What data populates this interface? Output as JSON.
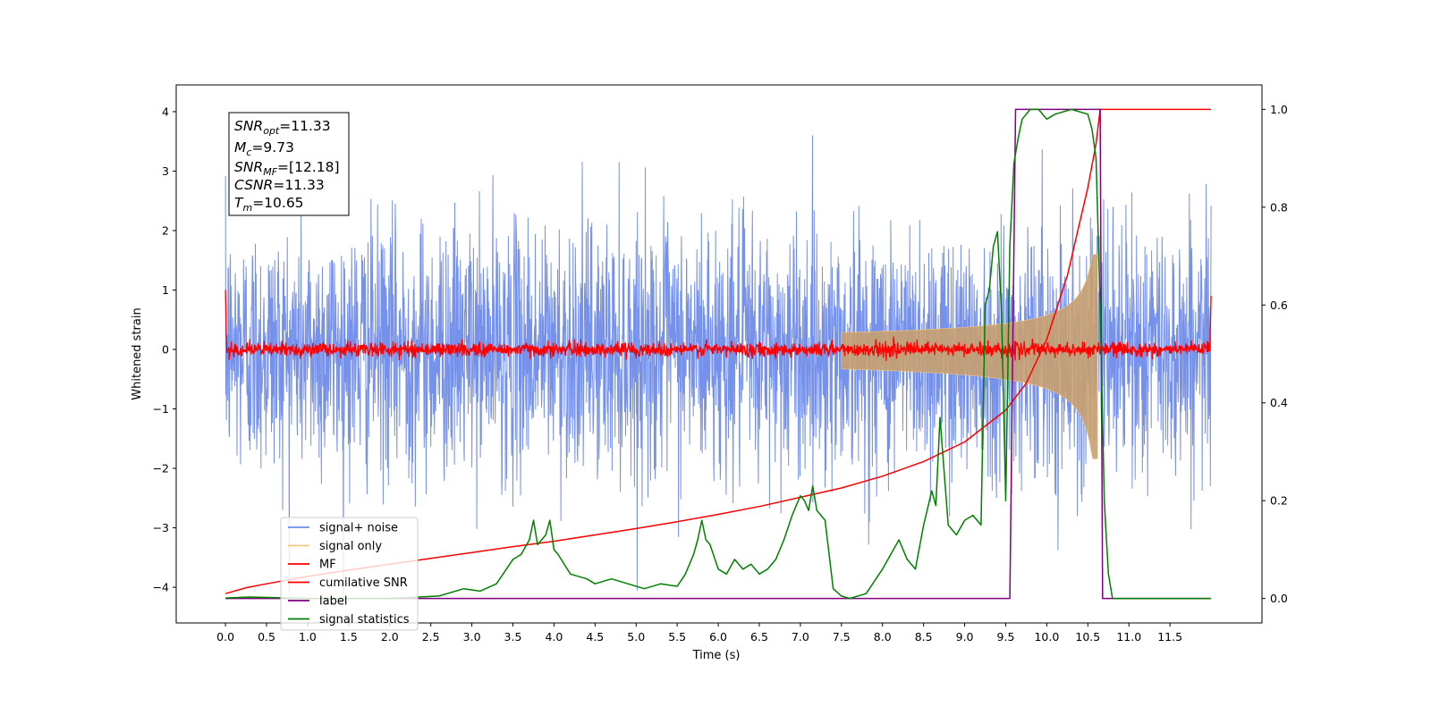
{
  "chart_data": {
    "type": "line",
    "xlabel": "Time (s)",
    "ylabel": "Whitened strain",
    "xlim": [
      -0.6,
      12.62
    ],
    "ylim": [
      -4.6,
      4.45
    ],
    "ylim_right": [
      -0.05,
      1.05
    ],
    "x_ticks": [
      "0.0",
      "0.5",
      "1.0",
      "1.5",
      "2.0",
      "2.5",
      "3.0",
      "3.5",
      "4.0",
      "4.5",
      "5.0",
      "5.5",
      "6.0",
      "6.5",
      "7.0",
      "7.5",
      "8.0",
      "8.5",
      "9.0",
      "9.5",
      "10.0",
      "10.5",
      "11.0",
      "11.5"
    ],
    "y_ticks_left": [
      "4",
      "3",
      "2",
      "1",
      "0",
      "−1",
      "−2",
      "−3",
      "−4"
    ],
    "y_ticks_right": [
      "1.0",
      "0.8",
      "0.6",
      "0.4",
      "0.2",
      "0.0"
    ],
    "grid": false,
    "legend_position": "lower-left",
    "colors": {
      "signal_noise": "#6f8be8",
      "signal_only": "#f5c77e",
      "mf": "#ff0000",
      "cumulative": "#ff0000",
      "label": "#800080",
      "stats": "#008000"
    },
    "legend": [
      {
        "key": "signal_noise",
        "label": "signal+ noise",
        "color": "#6f8be8"
      },
      {
        "key": "signal_only",
        "label": "signal only",
        "color": "#f5c77e"
      },
      {
        "key": "mf",
        "label": "MF",
        "color": "#ff0000"
      },
      {
        "key": "cumulative",
        "label": "cumilative SNR",
        "color": "#ff0000"
      },
      {
        "key": "label",
        "label": "label",
        "color": "#800080"
      },
      {
        "key": "stats",
        "label": "signal statistics",
        "color": "#008000"
      }
    ],
    "annotation": {
      "lines": [
        {
          "base": "SNR",
          "sub": "opt",
          "value": "=11.33"
        },
        {
          "base": "M",
          "sub": "c",
          "value": "=9.73"
        },
        {
          "base": "SNR",
          "sub": "MF",
          "value": "=[12.18]"
        },
        {
          "base": "CSNR",
          "sub": "",
          "value": "=11.33"
        },
        {
          "base": "T",
          "sub": "m",
          "value": "=10.65"
        }
      ]
    },
    "series": [
      {
        "key": "cumulative",
        "axis": "right",
        "x": [
          0.0,
          0.25,
          0.5,
          1.0,
          1.5,
          2.0,
          2.5,
          3.0,
          3.5,
          4.0,
          4.5,
          5.0,
          5.5,
          6.0,
          6.5,
          7.0,
          7.5,
          8.0,
          8.5,
          9.0,
          9.5,
          9.75,
          10.0,
          10.25,
          10.5,
          10.6,
          10.65,
          12.0
        ],
        "y": [
          0.01,
          0.022,
          0.03,
          0.045,
          0.058,
          0.07,
          0.082,
          0.094,
          0.106,
          0.117,
          0.13,
          0.143,
          0.157,
          0.172,
          0.188,
          0.207,
          0.226,
          0.25,
          0.28,
          0.32,
          0.385,
          0.44,
          0.53,
          0.66,
          0.84,
          0.93,
          1.0,
          1.0
        ]
      },
      {
        "key": "label",
        "axis": "right",
        "x": [
          0.0,
          9.55,
          9.62,
          10.65,
          10.68,
          12.0
        ],
        "y": [
          0.0,
          0.0,
          1.0,
          1.0,
          0.0,
          0.0
        ]
      },
      {
        "key": "stats",
        "axis": "right",
        "x": [
          0.0,
          0.3,
          1.0,
          2.0,
          2.6,
          2.9,
          3.1,
          3.3,
          3.5,
          3.6,
          3.7,
          3.75,
          3.8,
          3.9,
          3.95,
          4.0,
          4.05,
          4.2,
          4.4,
          4.5,
          4.7,
          4.9,
          5.1,
          5.3,
          5.5,
          5.6,
          5.7,
          5.75,
          5.8,
          5.85,
          5.9,
          6.0,
          6.1,
          6.2,
          6.3,
          6.4,
          6.5,
          6.6,
          6.7,
          6.8,
          6.9,
          7.0,
          7.05,
          7.1,
          7.15,
          7.2,
          7.3,
          7.4,
          7.5,
          7.6,
          7.8,
          8.0,
          8.2,
          8.3,
          8.4,
          8.5,
          8.6,
          8.65,
          8.7,
          8.8,
          8.9,
          9.0,
          9.1,
          9.2,
          9.25,
          9.3,
          9.35,
          9.4,
          9.45,
          9.5,
          9.55,
          9.6,
          9.65,
          9.7,
          9.75,
          9.8,
          9.85,
          9.9,
          10.0,
          10.1,
          10.3,
          10.5,
          10.55,
          10.6,
          10.65,
          10.7,
          10.75,
          10.8,
          10.85,
          10.9,
          11.0,
          12.0
        ],
        "y": [
          0.001,
          0.003,
          0.0,
          0.0,
          0.005,
          0.02,
          0.015,
          0.03,
          0.08,
          0.09,
          0.12,
          0.16,
          0.11,
          0.13,
          0.16,
          0.1,
          0.09,
          0.05,
          0.04,
          0.03,
          0.04,
          0.03,
          0.02,
          0.03,
          0.025,
          0.05,
          0.09,
          0.12,
          0.16,
          0.12,
          0.11,
          0.06,
          0.05,
          0.08,
          0.06,
          0.07,
          0.05,
          0.06,
          0.08,
          0.12,
          0.17,
          0.21,
          0.2,
          0.18,
          0.23,
          0.18,
          0.16,
          0.02,
          0.005,
          0.0,
          0.01,
          0.06,
          0.12,
          0.08,
          0.06,
          0.15,
          0.22,
          0.19,
          0.37,
          0.15,
          0.13,
          0.16,
          0.17,
          0.15,
          0.6,
          0.63,
          0.72,
          0.75,
          0.58,
          0.2,
          0.72,
          0.89,
          0.94,
          0.98,
          0.99,
          1.0,
          1.0,
          1.0,
          0.98,
          0.99,
          1.0,
          0.99,
          0.96,
          0.9,
          0.6,
          0.2,
          0.05,
          0.0,
          0.0,
          0.0,
          0.0,
          0.0
        ]
      }
    ]
  }
}
